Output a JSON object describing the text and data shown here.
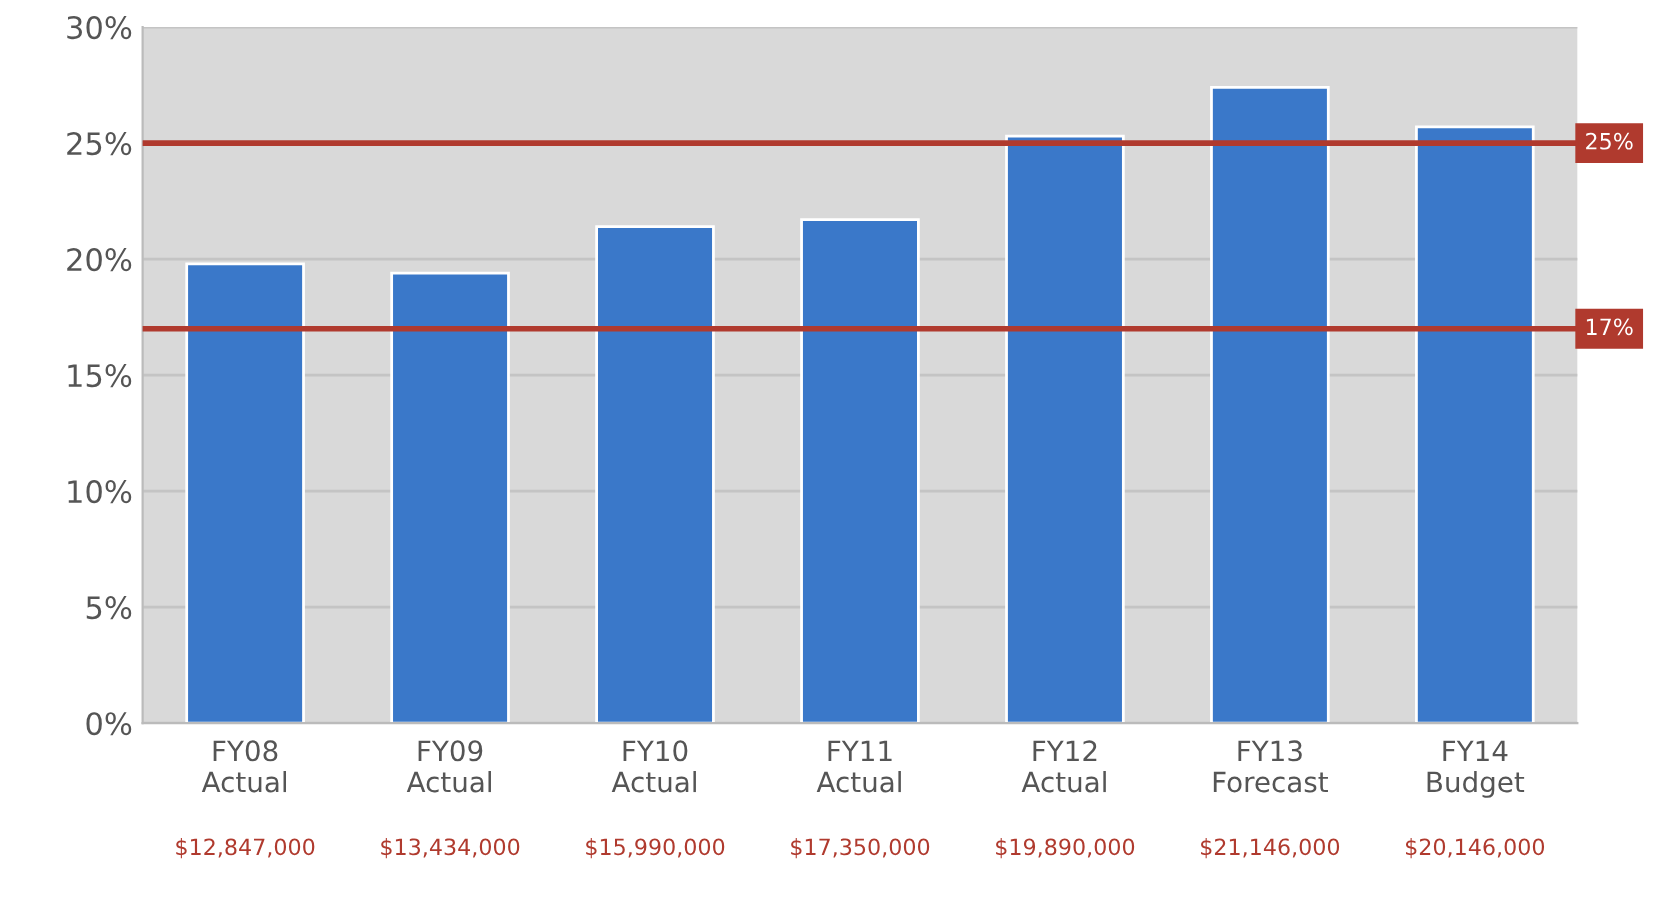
{
  "chart_data": {
    "type": "bar",
    "categories": [
      "FY08\nActual",
      "FY09\nActual",
      "FY10\nActual",
      "FY11\nActual",
      "FY12\nActual",
      "FY13\nForecast",
      "FY14\nBudget"
    ],
    "values": [
      19.8,
      19.4,
      21.4,
      21.7,
      25.3,
      27.4,
      25.7
    ],
    "color": "#3a78c9",
    "ylim": [
      0,
      30
    ],
    "yticks": [
      {
        "value": 0,
        "label": "0%"
      },
      {
        "value": 5,
        "label": "5%"
      },
      {
        "value": 10,
        "label": "10%"
      },
      {
        "value": 15,
        "label": "15%"
      },
      {
        "value": 20,
        "label": "20%"
      },
      {
        "value": 25,
        "label": "25%"
      },
      {
        "value": 30,
        "label": "30%"
      }
    ],
    "grid": "y",
    "legend": false,
    "ref_lines": [
      {
        "axis": "y",
        "value": 25,
        "label": "25%",
        "color": "#b03a2e"
      },
      {
        "axis": "y",
        "value": 17,
        "label": "17%",
        "color": "#b03a2e"
      }
    ],
    "annotations": [
      "$12,847,000",
      "$13,434,000",
      "$15,990,000",
      "$17,350,000",
      "$19,890,000",
      "$21,146,000",
      "$20,146,000"
    ]
  }
}
